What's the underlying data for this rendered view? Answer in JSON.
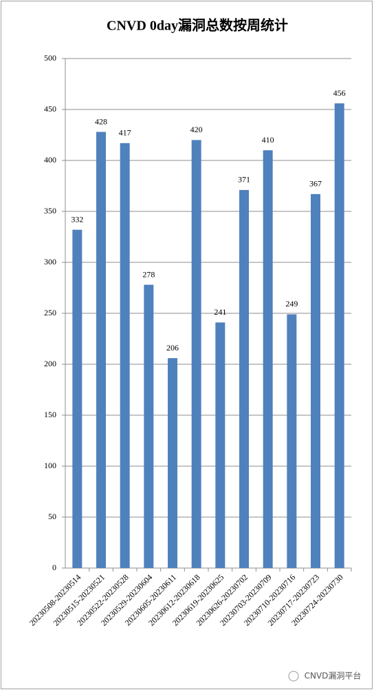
{
  "chart_data": {
    "type": "bar",
    "title": "CNVD 0day漏洞总数按周统计",
    "categories": [
      "20230508-20230514",
      "20230515-20230521",
      "20230522-20230528",
      "20230529-20230604",
      "20230605-20230611",
      "20230612-20230618",
      "20230619-20230625",
      "20230626-20230702",
      "20230703-20230709",
      "20230710-20230716",
      "20230717-20230723",
      "20230724-20230730"
    ],
    "values": [
      332,
      428,
      417,
      278,
      206,
      420,
      241,
      371,
      410,
      249,
      367,
      456
    ],
    "color": "#4f81bd",
    "ylim": [
      0,
      500
    ],
    "yticks": [
      0,
      50,
      100,
      150,
      200,
      250,
      300,
      350,
      400,
      450,
      500
    ],
    "grid": true
  },
  "watermark": "CNVD漏洞平台"
}
